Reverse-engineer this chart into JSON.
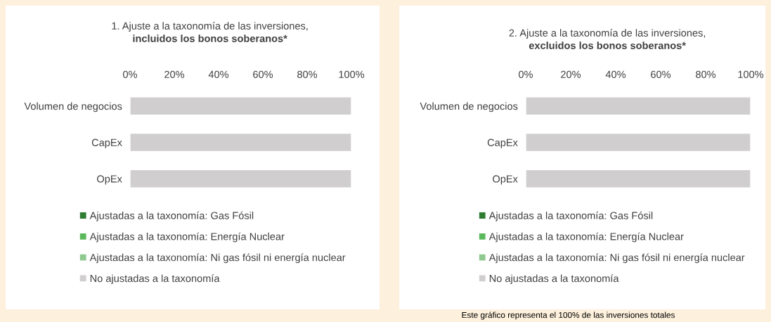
{
  "chart_data": [
    {
      "type": "bar",
      "orientation": "horizontal",
      "stacked": true,
      "title": "1. Ajuste a la taxonomía de las inversiones,",
      "subtitle": "incluidos los bonos soberanos*",
      "categories": [
        "Volumen de negocios",
        "CapEx",
        "OpEx"
      ],
      "series": [
        {
          "name": "Ajustadas a la taxonomía: Gas Fósil",
          "color": "#2e7d32",
          "values": [
            0,
            0,
            0
          ]
        },
        {
          "name": "Ajustadas a la taxonomía: Energía Nuclear",
          "color": "#5cb85c",
          "values": [
            0,
            0,
            0
          ]
        },
        {
          "name": "Ajustadas a la taxonomía: Ni gas fósil ni energía nuclear",
          "color": "#8fc98f",
          "values": [
            0,
            0,
            0
          ]
        },
        {
          "name": "No ajustadas a la taxonomía",
          "color": "#d0cece",
          "values": [
            100,
            100,
            100
          ]
        }
      ],
      "xlim": [
        0,
        100
      ],
      "xticks": [
        {
          "value": 0,
          "label": "0%"
        },
        {
          "value": 20,
          "label": "20%"
        },
        {
          "value": 40,
          "label": "40%"
        },
        {
          "value": 60,
          "label": "60%"
        },
        {
          "value": 80,
          "label": "80%"
        },
        {
          "value": 100,
          "label": "100%"
        }
      ],
      "grid": false,
      "legend": "bottom"
    },
    {
      "type": "bar",
      "orientation": "horizontal",
      "stacked": true,
      "title": "2. Ajuste a la taxonomía de las inversiones,",
      "subtitle": "excluidos los bonos soberanos*",
      "categories": [
        "Volumen de negocios",
        "CapEx",
        "OpEx"
      ],
      "series": [
        {
          "name": "Ajustadas a la taxonomía: Gas Fósil",
          "color": "#2e7d32",
          "values": [
            0,
            0,
            0
          ]
        },
        {
          "name": "Ajustadas a la taxonomía: Energía Nuclear",
          "color": "#5cb85c",
          "values": [
            0,
            0,
            0
          ]
        },
        {
          "name": "Ajustadas a la taxonomía: Ni gas fósil ni energía nuclear",
          "color": "#8fc98f",
          "values": [
            0,
            0,
            0
          ]
        },
        {
          "name": "No ajustadas a la taxonomía",
          "color": "#d0cece",
          "values": [
            100,
            100,
            100
          ]
        }
      ],
      "xlim": [
        0,
        100
      ],
      "xticks": [
        {
          "value": 0,
          "label": "0%"
        },
        {
          "value": 20,
          "label": "20%"
        },
        {
          "value": 40,
          "label": "40%"
        },
        {
          "value": 60,
          "label": "60%"
        },
        {
          "value": 80,
          "label": "80%"
        },
        {
          "value": 100,
          "label": "100%"
        }
      ],
      "grid": false,
      "legend": "bottom",
      "annotations": [
        "Este gráfico representa el 100% de las inversiones totales"
      ]
    }
  ]
}
